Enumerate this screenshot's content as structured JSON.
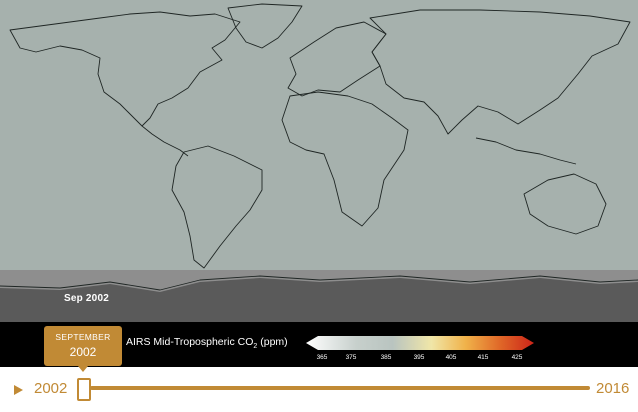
{
  "map": {
    "frame_date": "Sep  2002",
    "colors": {
      "ocean": "#a6b1ad",
      "land_outline": "#1f2624",
      "antarctica_ice": "#5a5a5a",
      "antarctica_shelf": "#8e8e8e"
    }
  },
  "legend": {
    "title_prefix": "AIRS Mid-Tropospheric CO",
    "title_subscript": "2",
    "title_suffix": " (ppm)",
    "ticks": [
      "365",
      "375",
      "385",
      "395",
      "405",
      "415",
      "425"
    ],
    "gradient": [
      "#ffffff",
      "#c7d0cc",
      "#b9c4c0",
      "#f0e6a8",
      "#f0b24a",
      "#e06828",
      "#cc2418"
    ]
  },
  "timeline": {
    "start_label": "2002",
    "end_label": "2016",
    "play_icon": "play-icon",
    "accent": "#c18a35",
    "position": 0.0
  },
  "tooltip": {
    "month": "SEPTEMBER",
    "year": "2002"
  }
}
